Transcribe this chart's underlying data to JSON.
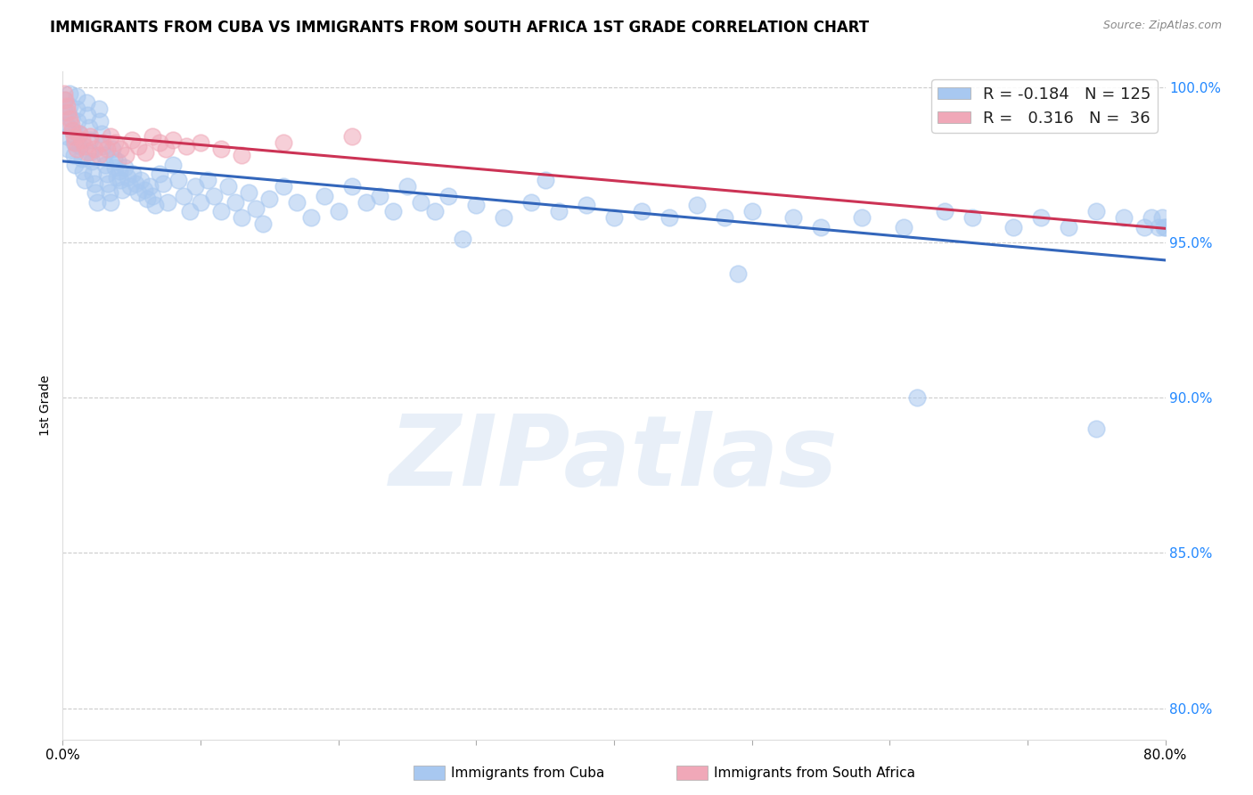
{
  "title": "IMMIGRANTS FROM CUBA VS IMMIGRANTS FROM SOUTH AFRICA 1ST GRADE CORRELATION CHART",
  "source": "Source: ZipAtlas.com",
  "xlabel": "",
  "ylabel": "1st Grade",
  "xmin": 0.0,
  "xmax": 0.8,
  "ymin": 0.79,
  "ymax": 1.005,
  "yticks": [
    0.8,
    0.85,
    0.9,
    0.95,
    1.0
  ],
  "ytick_labels": [
    "80.0%",
    "85.0%",
    "90.0%",
    "95.0%",
    "100.0%"
  ],
  "xticks": [
    0.0,
    0.1,
    0.2,
    0.3,
    0.4,
    0.5,
    0.6,
    0.7,
    0.8
  ],
  "xtick_labels": [
    "0.0%",
    "",
    "",
    "",
    "",
    "",
    "",
    "",
    "80.0%"
  ],
  "cuba_color": "#a8c8f0",
  "south_africa_color": "#f0a8b8",
  "cuba_line_color": "#3366bb",
  "south_africa_line_color": "#cc3355",
  "R_cuba": -0.184,
  "N_cuba": 125,
  "R_sa": 0.316,
  "N_sa": 36,
  "watermark_text": "ZIPatlas",
  "legend_label_cuba": "Immigrants from Cuba",
  "legend_label_sa": "Immigrants from South Africa",
  "cuba_x": [
    0.001,
    0.002,
    0.003,
    0.003,
    0.004,
    0.005,
    0.005,
    0.006,
    0.007,
    0.008,
    0.008,
    0.009,
    0.01,
    0.01,
    0.011,
    0.012,
    0.013,
    0.014,
    0.015,
    0.016,
    0.017,
    0.018,
    0.019,
    0.02,
    0.02,
    0.021,
    0.022,
    0.023,
    0.024,
    0.025,
    0.026,
    0.027,
    0.028,
    0.029,
    0.03,
    0.031,
    0.032,
    0.033,
    0.034,
    0.035,
    0.036,
    0.037,
    0.038,
    0.039,
    0.04,
    0.041,
    0.042,
    0.043,
    0.045,
    0.047,
    0.049,
    0.051,
    0.053,
    0.055,
    0.057,
    0.059,
    0.061,
    0.063,
    0.065,
    0.067,
    0.07,
    0.073,
    0.076,
    0.08,
    0.084,
    0.088,
    0.092,
    0.096,
    0.1,
    0.105,
    0.11,
    0.115,
    0.12,
    0.125,
    0.13,
    0.135,
    0.14,
    0.145,
    0.15,
    0.16,
    0.17,
    0.18,
    0.19,
    0.2,
    0.21,
    0.22,
    0.23,
    0.24,
    0.25,
    0.26,
    0.27,
    0.28,
    0.3,
    0.32,
    0.34,
    0.36,
    0.38,
    0.4,
    0.42,
    0.44,
    0.46,
    0.48,
    0.5,
    0.53,
    0.55,
    0.58,
    0.61,
    0.64,
    0.66,
    0.69,
    0.71,
    0.73,
    0.75,
    0.77,
    0.785,
    0.79,
    0.795,
    0.798,
    0.799,
    0.8,
    0.49,
    0.35,
    0.29,
    0.62,
    0.75
  ],
  "cuba_y": [
    0.996,
    0.992,
    0.988,
    0.984,
    0.98,
    0.998,
    0.994,
    0.99,
    0.986,
    0.982,
    0.978,
    0.975,
    0.997,
    0.993,
    0.989,
    0.985,
    0.981,
    0.977,
    0.973,
    0.97,
    0.995,
    0.991,
    0.987,
    0.983,
    0.979,
    0.976,
    0.972,
    0.969,
    0.966,
    0.963,
    0.993,
    0.989,
    0.985,
    0.981,
    0.978,
    0.975,
    0.972,
    0.969,
    0.966,
    0.963,
    0.98,
    0.977,
    0.974,
    0.971,
    0.976,
    0.973,
    0.97,
    0.967,
    0.974,
    0.971,
    0.968,
    0.972,
    0.969,
    0.966,
    0.97,
    0.967,
    0.964,
    0.968,
    0.965,
    0.962,
    0.972,
    0.969,
    0.963,
    0.975,
    0.97,
    0.965,
    0.96,
    0.968,
    0.963,
    0.97,
    0.965,
    0.96,
    0.968,
    0.963,
    0.958,
    0.966,
    0.961,
    0.956,
    0.964,
    0.968,
    0.963,
    0.958,
    0.965,
    0.96,
    0.968,
    0.963,
    0.965,
    0.96,
    0.968,
    0.963,
    0.96,
    0.965,
    0.962,
    0.958,
    0.963,
    0.96,
    0.962,
    0.958,
    0.96,
    0.958,
    0.962,
    0.958,
    0.96,
    0.958,
    0.955,
    0.958,
    0.955,
    0.96,
    0.958,
    0.955,
    0.958,
    0.955,
    0.96,
    0.958,
    0.955,
    0.958,
    0.955,
    0.958,
    0.955,
    0.955,
    0.94,
    0.97,
    0.951,
    0.9,
    0.89
  ],
  "sa_x": [
    0.001,
    0.002,
    0.003,
    0.004,
    0.005,
    0.006,
    0.007,
    0.008,
    0.009,
    0.01,
    0.012,
    0.014,
    0.016,
    0.018,
    0.02,
    0.023,
    0.026,
    0.029,
    0.032,
    0.035,
    0.038,
    0.042,
    0.046,
    0.05,
    0.055,
    0.06,
    0.065,
    0.07,
    0.075,
    0.08,
    0.09,
    0.1,
    0.115,
    0.13,
    0.16,
    0.21
  ],
  "sa_y": [
    0.998,
    0.996,
    0.994,
    0.992,
    0.99,
    0.988,
    0.986,
    0.984,
    0.982,
    0.98,
    0.985,
    0.983,
    0.981,
    0.979,
    0.984,
    0.98,
    0.978,
    0.982,
    0.98,
    0.984,
    0.982,
    0.98,
    0.978,
    0.983,
    0.981,
    0.979,
    0.984,
    0.982,
    0.98,
    0.983,
    0.981,
    0.982,
    0.98,
    0.978,
    0.982,
    0.984
  ]
}
